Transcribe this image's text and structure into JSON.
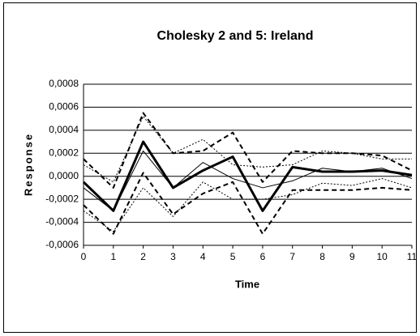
{
  "chart_data": {
    "type": "line",
    "title": "Cholesky 2 and 5: Ireland",
    "x_label": "Time",
    "y_label": "Response",
    "x": [
      0,
      1,
      2,
      3,
      4,
      5,
      6,
      7,
      8,
      9,
      10,
      11
    ],
    "xlim": [
      0,
      11
    ],
    "xticks": [
      0,
      1,
      2,
      3,
      4,
      5,
      6,
      7,
      8,
      9,
      10,
      11
    ],
    "ylim": [
      -0.0006,
      0.0008
    ],
    "yticks": [
      {
        "value": 0.0008,
        "label": "0,0008"
      },
      {
        "value": 0.0006,
        "label": "0,0006"
      },
      {
        "value": 0.0004,
        "label": "0,0004"
      },
      {
        "value": 0.0002,
        "label": "0,0002"
      },
      {
        "value": 0,
        "label": "0,0000"
      },
      {
        "value": -0.0002,
        "label": "-0,0002"
      },
      {
        "value": -0.0004,
        "label": "-0,0004"
      },
      {
        "value": -0.0006,
        "label": "-0,0006"
      }
    ],
    "grid": true,
    "series": [
      {
        "color": "#000000",
        "width": 3,
        "dash": "none",
        "values": [
          -5e-05,
          -0.0003,
          0.0003,
          -0.0001,
          5e-05,
          0.00017,
          -0.0003,
          8e-05,
          4e-05,
          4e-05,
          5e-05,
          1e-05
        ]
      },
      {
        "color": "#000000",
        "width": 1,
        "dash": "none",
        "values": [
          -0.0001,
          -0.0003,
          0.00022,
          -0.0001,
          0.00012,
          -2e-05,
          -0.0001,
          -4e-05,
          7e-05,
          4e-05,
          7e-05,
          -2e-05
        ]
      },
      {
        "color": "#000000",
        "width": 2,
        "dash": "6,4",
        "values": [
          0.00015,
          -0.0001,
          0.00055,
          0.0002,
          0.00022,
          0.00038,
          -5e-05,
          0.00022,
          0.0002,
          0.0002,
          0.00018,
          5e-05
        ]
      },
      {
        "color": "#000000",
        "width": 2,
        "dash": "6,4",
        "values": [
          -0.00025,
          -0.0005,
          3e-05,
          -0.00033,
          -0.00015,
          -5e-05,
          -0.0005,
          -0.00012,
          -0.00012,
          -0.00012,
          -0.0001,
          -0.00012
        ]
      },
      {
        "color": "#000000",
        "width": 1,
        "dash": "2,2",
        "values": [
          0.0001,
          -5e-05,
          0.00052,
          0.0002,
          0.00032,
          0.0001,
          8e-05,
          0.0001,
          0.00022,
          0.0002,
          0.00015,
          0.00015
        ]
      },
      {
        "color": "#000000",
        "width": 1,
        "dash": "2,2",
        "values": [
          -0.0003,
          -0.00048,
          -0.0001,
          -0.00035,
          -5e-05,
          -0.0002,
          -0.0002,
          -0.00016,
          -6e-05,
          -8e-05,
          -2e-05,
          -0.0001
        ]
      }
    ]
  }
}
